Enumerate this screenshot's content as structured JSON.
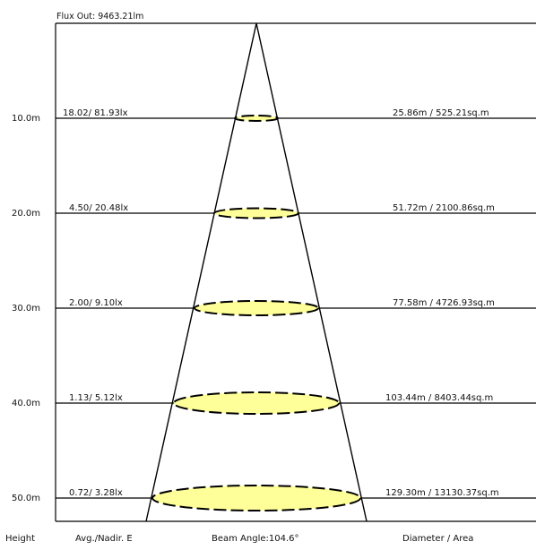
{
  "flux_label": "Flux Out: 9463.21lm",
  "footer": {
    "height": "Height",
    "avg_nadir": "Avg./Nadir. E",
    "beam_angle": "Beam Angle:104.6°",
    "diameter_area": "Diameter / Area"
  },
  "rows": [
    {
      "height": "10.0m",
      "illuminance": "18.02/ 81.93lx",
      "diameter_area": "25.86m / 525.21sq.m"
    },
    {
      "height": "20.0m",
      "illuminance": "4.50/ 20.48lx",
      "diameter_area": "51.72m / 2100.86sq.m"
    },
    {
      "height": "30.0m",
      "illuminance": "2.00/ 9.10lx",
      "diameter_area": "77.58m / 4726.93sq.m"
    },
    {
      "height": "40.0m",
      "illuminance": "1.13/ 5.12lx",
      "diameter_area": "103.44m / 8403.44sq.m"
    },
    {
      "height": "50.0m",
      "illuminance": "0.72/ 3.28lx",
      "diameter_area": "129.30m / 13130.37sq.m"
    }
  ],
  "colors": {
    "spot_fill": "#ffff99",
    "line": "#000000"
  }
}
